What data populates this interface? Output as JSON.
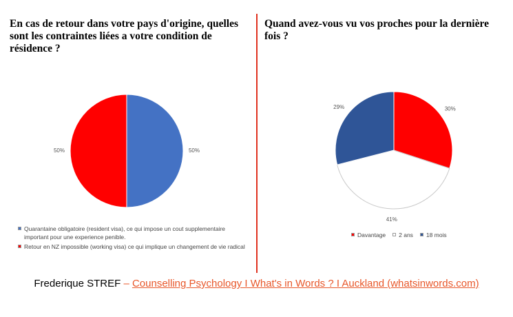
{
  "chart_data": [
    {
      "type": "pie",
      "title": "En cas de retour dans votre pays d'origine, quelles sont les contraintes liées a votre condition de résidence ?",
      "categories": [
        "Quarantaine obligatoire (resident visa), ce qui impose un cout supplementaire important pour une experience penible.",
        "Retour en NZ impossible (working visa) ce qui implique un changement de vie radical"
      ],
      "values": [
        50,
        50
      ],
      "colors": [
        "#4472c4",
        "#ff0000"
      ],
      "legend": "bottom"
    },
    {
      "type": "pie",
      "title": "Quand avez-vous vu vos proches pour la dernière fois ?",
      "categories": [
        "Davantage",
        "2 ans",
        "18 mois"
      ],
      "values": [
        30,
        41,
        29
      ],
      "colors": [
        "#ff0000",
        "#ffffff",
        "#2f5597"
      ],
      "legend": "bottom"
    }
  ],
  "footer": {
    "author": "Frederique STREF",
    "separator": "–",
    "link": "Counselling Psychology I What's in Words ? I Auckland (whatsinwords.com)"
  }
}
